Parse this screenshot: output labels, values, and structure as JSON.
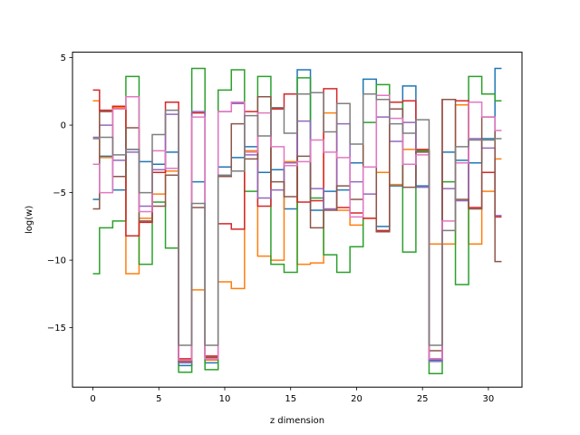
{
  "chart_data": {
    "type": "line",
    "step": "mid",
    "title": "",
    "xlabel": "z dimension",
    "ylabel": "log(w)",
    "xlim": [
      -1.55,
      32.55
    ],
    "ylim": [
      -19.4,
      5.4
    ],
    "xticks": [
      0,
      5,
      10,
      15,
      20,
      25,
      30
    ],
    "yticks": [
      5,
      0,
      -5,
      -10,
      -15
    ],
    "grid": false,
    "x": [
      0,
      1,
      2,
      3,
      4,
      5,
      6,
      7,
      8,
      9,
      10,
      11,
      12,
      13,
      14,
      15,
      16,
      17,
      18,
      19,
      20,
      21,
      22,
      23,
      24,
      25,
      26,
      27,
      28,
      29,
      30,
      31
    ],
    "series": [
      {
        "color": "#1f77b4",
        "values": [
          -5.5,
          -2.3,
          -4.8,
          -1.8,
          -2.7,
          -2.9,
          -2.0,
          -17.8,
          -4.2,
          -17.6,
          -3.1,
          -2.4,
          -1.6,
          -3.5,
          -3.3,
          -6.2,
          4.1,
          -6.3,
          -4.9,
          -4.8,
          -2.8,
          3.4,
          -7.5,
          -4.5,
          2.9,
          -4.5,
          -17.4,
          -2.0,
          -2.6,
          -2.8,
          -1.0,
          4.2
        ]
      },
      {
        "color": "#ff7f0e",
        "values": [
          1.8,
          -2.4,
          1.3,
          -11.0,
          -6.9,
          -5.1,
          -3.4,
          -17.5,
          -12.2,
          -17.4,
          -11.6,
          -12.1,
          -1.9,
          -9.7,
          -10.0,
          -2.7,
          -10.3,
          -10.2,
          0.9,
          -6.3,
          -7.4,
          -6.9,
          -3.5,
          -4.4,
          -1.8,
          -1.9,
          -8.8,
          -8.8,
          1.5,
          -8.8,
          -4.9,
          -2.5
        ]
      },
      {
        "color": "#2ca02c",
        "values": [
          -11.0,
          -7.6,
          -7.1,
          3.6,
          -10.3,
          -5.7,
          -9.1,
          -18.3,
          4.2,
          -18.1,
          2.6,
          4.1,
          -4.9,
          3.6,
          -10.3,
          -10.9,
          3.5,
          -5.4,
          -9.6,
          -10.9,
          -9.0,
          0.2,
          3.0,
          1.7,
          -9.4,
          -1.9,
          -18.4,
          -4.2,
          -11.8,
          3.6,
          2.3,
          1.8
        ]
      },
      {
        "color": "#d62728",
        "values": [
          2.6,
          1.1,
          1.4,
          -8.2,
          -7.2,
          -3.5,
          1.7,
          -17.3,
          0.9,
          -17.1,
          -7.3,
          -7.7,
          1.0,
          -6.0,
          1.2,
          2.3,
          -5.7,
          -5.6,
          2.7,
          -6.1,
          -6.5,
          -6.9,
          -7.8,
          1.7,
          1.8,
          -1.8,
          -17.3,
          1.9,
          1.8,
          -6.1,
          -3.5,
          -6.8
        ]
      },
      {
        "color": "#9467bd",
        "values": [
          -0.9,
          0.0,
          -2.6,
          -2.0,
          -6.0,
          -3.3,
          0.8,
          -17.6,
          1.0,
          -17.3,
          1.0,
          1.6,
          -2.2,
          -5.4,
          -4.8,
          -2.8,
          0.3,
          -4.7,
          -6.2,
          0.1,
          -4.2,
          -5.1,
          0.6,
          -1.2,
          0.2,
          -4.6,
          -17.5,
          -4.7,
          -5.6,
          -1.0,
          -1.7,
          -6.7
        ]
      },
      {
        "color": "#8c564b",
        "values": [
          -6.2,
          1.0,
          -3.8,
          -0.2,
          -7.1,
          -6.0,
          -3.7,
          -17.5,
          -6.1,
          -17.2,
          -3.8,
          0.1,
          -2.5,
          2.1,
          -4.2,
          -5.3,
          -2.3,
          -7.6,
          -6.3,
          -4.5,
          -5.5,
          2.3,
          -7.9,
          1.2,
          -4.6,
          -2.0,
          -16.7,
          1.9,
          -5.5,
          -6.2,
          0.6,
          -10.1
        ]
      },
      {
        "color": "#e377c2",
        "values": [
          -2.9,
          -5.0,
          1.2,
          2.1,
          -6.4,
          -1.9,
          -3.2,
          -17.4,
          0.6,
          -17.3,
          1.0,
          1.7,
          -2.0,
          0.9,
          -1.6,
          -3.0,
          -2.7,
          -1.1,
          -2.0,
          -2.4,
          -6.8,
          -3.1,
          2.2,
          0.5,
          -2.9,
          -2.2,
          -17.3,
          -7.1,
          -2.8,
          1.7,
          0.6,
          -0.4
        ]
      },
      {
        "color": "#7f7f7f",
        "values": [
          -1.0,
          -0.9,
          -2.2,
          -1.8,
          -5.0,
          -0.7,
          1.1,
          -16.3,
          -5.8,
          -16.3,
          -3.7,
          -3.4,
          0.7,
          -0.8,
          1.3,
          -0.6,
          2.3,
          2.4,
          -0.5,
          1.6,
          -1.4,
          2.3,
          1.9,
          0.1,
          -0.6,
          0.4,
          -16.3,
          -7.8,
          -1.6,
          -1.1,
          -1.1,
          -1.0
        ]
      }
    ]
  }
}
